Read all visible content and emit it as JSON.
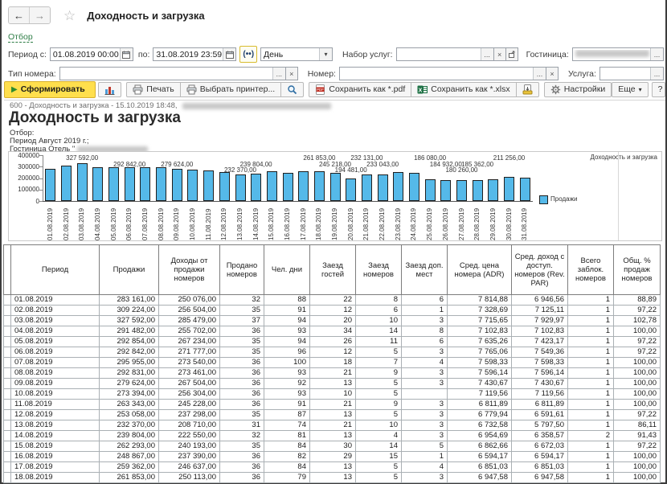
{
  "window": {
    "title": "Доходность и загрузка"
  },
  "filter_link": "Отбор",
  "filters": {
    "period_from_label": "Период с:",
    "period_from": "01.08.2019 00:00",
    "period_to_label": "по:",
    "period_to": "31.08.2019 23:59",
    "period_picker": "(••)",
    "granularity": "День",
    "service_set_label": "Набор услуг:",
    "hotel_label": "Гостиница:",
    "room_type_label": "Тип номера:",
    "room_label": "Номер:",
    "service_label": "Услуга:",
    "ellipsis": "...",
    "clear": "×"
  },
  "toolbar": {
    "generate": "Сформировать",
    "print": "Печать",
    "choose_printer": "Выбрать принтер...",
    "save_pdf": "Сохранить как *.pdf",
    "save_xlsx": "Сохранить как *.xlsx",
    "settings": "Настройки",
    "more": "Еще"
  },
  "report": {
    "meta": "600 - Доходность и загрузка - 15.10.2019 18:48,",
    "title": "Доходность и загрузка",
    "filter_caption": "Отбор:",
    "filter_line_period": "Период Август 2019 г.;",
    "filter_line_hotel": "Гостиница Отель \""
  },
  "chart_data": {
    "type": "bar",
    "title": "Доходность и загрузка",
    "legend": "Продажи",
    "legend_position": "right",
    "grid": false,
    "ylim": [
      0,
      400000
    ],
    "yticks": [
      0,
      100000,
      200000,
      300000,
      400000
    ],
    "bar_color": "#55b9e9",
    "categories": [
      "01.08.2019",
      "02.08.2019",
      "03.08.2019",
      "04.08.2019",
      "05.08.2019",
      "06.08.2019",
      "07.08.2019",
      "08.08.2019",
      "09.08.2019",
      "10.08.2019",
      "11.08.2019",
      "12.08.2019",
      "13.08.2019",
      "14.08.2019",
      "15.08.2019",
      "16.08.2019",
      "17.08.2019",
      "18.08.2019",
      "19.08.2019",
      "20.08.2019",
      "21.08.2019",
      "22.08.2019",
      "23.08.2019",
      "24.08.2019",
      "25.08.2019",
      "26.08.2019",
      "27.08.2019",
      "28.08.2019",
      "29.08.2019",
      "30.08.2019",
      "31.08.2019"
    ],
    "values": [
      283161,
      309224,
      327592,
      291482,
      292854,
      292842,
      295955,
      292831,
      279624,
      273394,
      263343,
      253058,
      232370,
      239804,
      262293,
      248867,
      259362,
      261853,
      245218,
      194481,
      232131,
      233043,
      255000,
      248000,
      186080,
      184932,
      180260,
      185362,
      186000,
      211256,
      206000
    ],
    "bar_labels": [
      {
        "bar": 3,
        "text": "327 592,00",
        "row": 0
      },
      {
        "bar": 6,
        "text": "292 842,00",
        "row": 1
      },
      {
        "bar": 9,
        "text": "279 624,00",
        "row": 1
      },
      {
        "bar": 13,
        "text": "232 370,00",
        "row": 2
      },
      {
        "bar": 14,
        "text": "239 804,00",
        "row": 1
      },
      {
        "bar": 18,
        "text": "261 853,00",
        "row": 0
      },
      {
        "bar": 19,
        "text": "245 218,00",
        "row": 1
      },
      {
        "bar": 20,
        "text": "194 481,00",
        "row": 2
      },
      {
        "bar": 21,
        "text": "232 131,00",
        "row": 0
      },
      {
        "bar": 22,
        "text": "233 043,00",
        "row": 1
      },
      {
        "bar": 25,
        "text": "186 080,00",
        "row": 0
      },
      {
        "bar": 26,
        "text": "184 932,00",
        "row": 1
      },
      {
        "bar": 27,
        "text": "180 260,00",
        "row": 2
      },
      {
        "bar": 28,
        "text": "185 362,00",
        "row": 1
      },
      {
        "bar": 30,
        "text": "211 256,00",
        "row": 0
      }
    ]
  },
  "table": {
    "headers": [
      "Период",
      "Продажи",
      "Доходы от продажи номеров",
      "Продано номеров",
      "Чел. дни",
      "Заезд гостей",
      "Заезд номеров",
      "Заезд доп. мест",
      "Сред. цена номера (ADR)",
      "Сред. доход с доступ. номеров (Rev. PAR)",
      "Всего заблок. номеров",
      "Общ. % продаж номеров"
    ],
    "rows": [
      [
        "01.08.2019",
        "283 161,00",
        "250 076,00",
        "32",
        "88",
        "22",
        "8",
        "6",
        "7 814,88",
        "6 946,56",
        "1",
        "88,89"
      ],
      [
        "02.08.2019",
        "309 224,00",
        "256 504,00",
        "35",
        "91",
        "12",
        "6",
        "1",
        "7 328,69",
        "7 125,11",
        "1",
        "97,22"
      ],
      [
        "03.08.2019",
        "327 592,00",
        "285 479,00",
        "37",
        "94",
        "20",
        "10",
        "3",
        "7 715,65",
        "7 929,97",
        "1",
        "102,78"
      ],
      [
        "04.08.2019",
        "291 482,00",
        "255 702,00",
        "36",
        "93",
        "34",
        "14",
        "8",
        "7 102,83",
        "7 102,83",
        "1",
        "100,00"
      ],
      [
        "05.08.2019",
        "292 854,00",
        "267 234,00",
        "35",
        "94",
        "26",
        "11",
        "6",
        "7 635,26",
        "7 423,17",
        "1",
        "97,22"
      ],
      [
        "06.08.2019",
        "292 842,00",
        "271 777,00",
        "35",
        "96",
        "12",
        "5",
        "3",
        "7 765,06",
        "7 549,36",
        "1",
        "97,22"
      ],
      [
        "07.08.2019",
        "295 955,00",
        "273 540,00",
        "36",
        "100",
        "18",
        "7",
        "4",
        "7 598,33",
        "7 598,33",
        "1",
        "100,00"
      ],
      [
        "08.08.2019",
        "292 831,00",
        "273 461,00",
        "36",
        "93",
        "21",
        "9",
        "3",
        "7 596,14",
        "7 596,14",
        "1",
        "100,00"
      ],
      [
        "09.08.2019",
        "279 624,00",
        "267 504,00",
        "36",
        "92",
        "13",
        "5",
        "3",
        "7 430,67",
        "7 430,67",
        "1",
        "100,00"
      ],
      [
        "10.08.2019",
        "273 394,00",
        "256 304,00",
        "36",
        "93",
        "10",
        "5",
        "",
        "7 119,56",
        "7 119,56",
        "1",
        "100,00"
      ],
      [
        "11.08.2019",
        "263 343,00",
        "245 228,00",
        "36",
        "91",
        "21",
        "9",
        "3",
        "6 811,89",
        "6 811,89",
        "1",
        "100,00"
      ],
      [
        "12.08.2019",
        "253 058,00",
        "237 298,00",
        "35",
        "87",
        "13",
        "5",
        "3",
        "6 779,94",
        "6 591,61",
        "1",
        "97,22"
      ],
      [
        "13.08.2019",
        "232 370,00",
        "208 710,00",
        "31",
        "74",
        "21",
        "10",
        "3",
        "6 732,58",
        "5 797,50",
        "1",
        "86,11"
      ],
      [
        "14.08.2019",
        "239 804,00",
        "222 550,00",
        "32",
        "81",
        "13",
        "4",
        "3",
        "6 954,69",
        "6 358,57",
        "2",
        "91,43"
      ],
      [
        "15.08.2019",
        "262 293,00",
        "240 193,00",
        "35",
        "84",
        "30",
        "14",
        "5",
        "6 862,66",
        "6 672,03",
        "1",
        "97,22"
      ],
      [
        "16.08.2019",
        "248 867,00",
        "237 390,00",
        "36",
        "82",
        "29",
        "15",
        "1",
        "6 594,17",
        "6 594,17",
        "1",
        "100,00"
      ],
      [
        "17.08.2019",
        "259 362,00",
        "246 637,00",
        "36",
        "84",
        "13",
        "5",
        "4",
        "6 851,03",
        "6 851,03",
        "1",
        "100,00"
      ],
      [
        "18.08.2019",
        "261 853,00",
        "250 113,00",
        "36",
        "79",
        "13",
        "5",
        "3",
        "6 947,58",
        "6 947,58",
        "1",
        "100,00"
      ]
    ]
  }
}
